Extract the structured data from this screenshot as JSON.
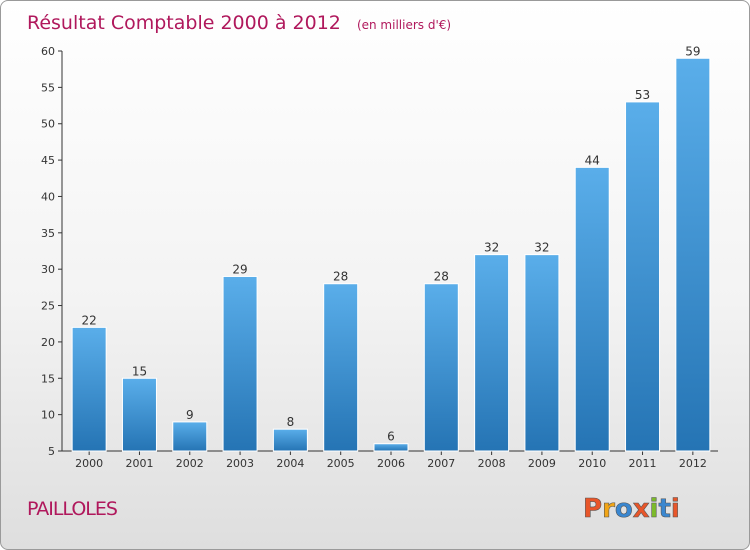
{
  "chart_data": {
    "type": "bar",
    "title": "Résultat Comptable 2000 à 2012",
    "subtitle": "(en milliers d'€)",
    "categories": [
      "2000",
      "2001",
      "2002",
      "2003",
      "2004",
      "2005",
      "2006",
      "2007",
      "2008",
      "2009",
      "2010",
      "2011",
      "2012"
    ],
    "values": [
      22,
      15,
      9,
      29,
      8,
      28,
      6,
      28,
      32,
      32,
      44,
      53,
      59
    ],
    "y_ticks": [
      5,
      10,
      15,
      20,
      25,
      30,
      35,
      40,
      45,
      50,
      55,
      60
    ],
    "ylim": [
      5,
      60
    ],
    "xlabel": "",
    "ylabel": "",
    "grid": false,
    "legend": "none"
  },
  "footer": {
    "commune": "PAILLOLES",
    "brand": "Proxiti"
  },
  "colors": {
    "title": "#b0185c",
    "bar_top": "#5aaeea",
    "bar_bottom": "#2574b4",
    "axis": "#333333",
    "brand_letters": [
      "#e8562a",
      "#f2a516",
      "#3a87d0",
      "#e8562a",
      "#7cba2b",
      "#3a87d0",
      "#e8562a"
    ]
  }
}
